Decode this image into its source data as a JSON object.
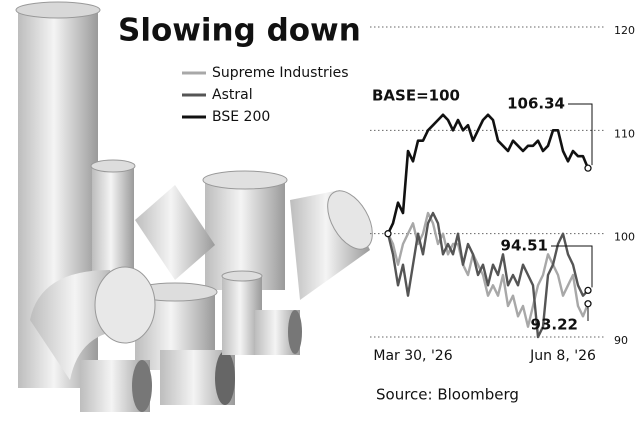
{
  "chart_data": {
    "type": "line",
    "title": "Slowing down",
    "annotations": [
      "BASE=100",
      "Source: Bloomberg"
    ],
    "categories": [
      null,
      null,
      null,
      null,
      null,
      "Mar 30, '26",
      null,
      null,
      null,
      null,
      null,
      null,
      null,
      null,
      null,
      null,
      null,
      null,
      null,
      null,
      null,
      null,
      null,
      null,
      null,
      null,
      null,
      null,
      null,
      null,
      null,
      null,
      null,
      null,
      null,
      "Jun 8, '26",
      null,
      null,
      null,
      null,
      null
    ],
    "series": [
      {
        "name": "Supreme Industries",
        "color": "#a8a8a8",
        "values": [
          100,
          99,
          97,
          99,
          100,
          101,
          99,
          100,
          102,
          101,
          99,
          100,
          98,
          99,
          99,
          97,
          96,
          98,
          97,
          96,
          94,
          95,
          94,
          96,
          93,
          94,
          92,
          93,
          91,
          93,
          95,
          96,
          98,
          97,
          96,
          94,
          95,
          96,
          93,
          92,
          93.22
        ]
      },
      {
        "name": "Astral",
        "color": "#555555",
        "values": [
          100,
          98,
          95,
          97,
          94,
          97,
          100,
          98,
          101,
          102,
          101,
          98,
          99,
          98,
          100,
          97,
          99,
          98,
          96,
          97,
          95,
          97,
          96,
          98,
          95,
          96,
          95,
          97,
          96,
          95,
          90,
          91,
          96,
          97,
          99,
          100,
          98,
          97,
          95,
          94,
          94.51
        ]
      },
      {
        "name": "BSE 200",
        "color": "#111111",
        "values": [
          100,
          101,
          103,
          102,
          108,
          107,
          109,
          109,
          110,
          110.5,
          111,
          111.5,
          111,
          110,
          111,
          110,
          110.5,
          109,
          110,
          111,
          111.5,
          111,
          109,
          108.5,
          108,
          109,
          108.5,
          108,
          108.5,
          108.5,
          109,
          108,
          108.5,
          110,
          110,
          108,
          107,
          108,
          107.5,
          107.5,
          106.34
        ]
      }
    ],
    "ylim": [
      90,
      120
    ],
    "yticks": [
      90,
      100,
      110,
      120
    ],
    "grid": true
  }
}
